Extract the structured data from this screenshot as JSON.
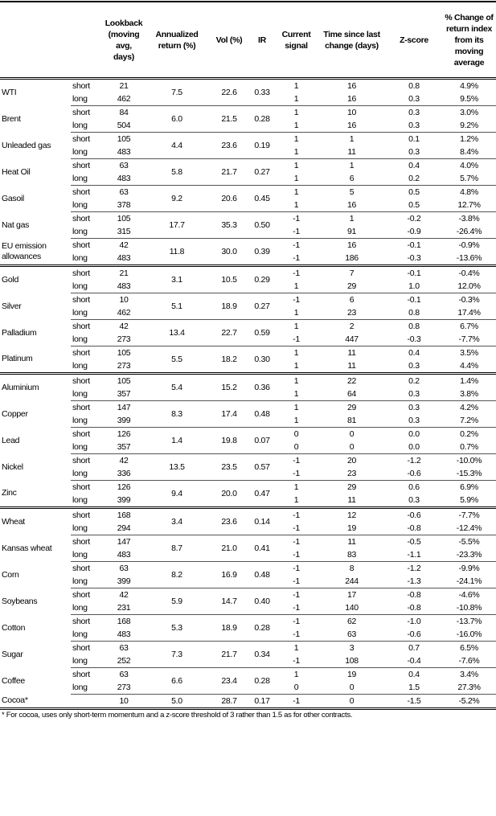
{
  "headers": [
    "",
    "",
    "Lookback (moving avg, days)",
    "Annualized return (%)",
    "Vol (%)",
    "IR",
    "Current signal",
    "Time since last change (days)",
    "Z-score",
    "% Change of return index from its moving average"
  ],
  "groups": [
    [
      {
        "name": "WTI",
        "ann": "7.5",
        "vol": "22.6",
        "ir": "0.33",
        "rows": [
          {
            "term": "short",
            "lookback": "21",
            "signal": "1",
            "time": "16",
            "z": "0.8",
            "pct": "4.9%"
          },
          {
            "term": "long",
            "lookback": "462",
            "signal": "1",
            "time": "16",
            "z": "0.3",
            "pct": "9.5%"
          }
        ]
      },
      {
        "name": "Brent",
        "ann": "6.0",
        "vol": "21.5",
        "ir": "0.28",
        "rows": [
          {
            "term": "short",
            "lookback": "84",
            "signal": "1",
            "time": "10",
            "z": "0.3",
            "pct": "3.0%"
          },
          {
            "term": "long",
            "lookback": "504",
            "signal": "1",
            "time": "16",
            "z": "0.3",
            "pct": "9.2%"
          }
        ]
      },
      {
        "name": "Unleaded gas",
        "ann": "4.4",
        "vol": "23.6",
        "ir": "0.19",
        "rows": [
          {
            "term": "short",
            "lookback": "105",
            "signal": "1",
            "time": "1",
            "z": "0.1",
            "pct": "1.2%"
          },
          {
            "term": "long",
            "lookback": "483",
            "signal": "1",
            "time": "11",
            "z": "0.3",
            "pct": "8.4%"
          }
        ]
      },
      {
        "name": "Heat Oil",
        "ann": "5.8",
        "vol": "21.7",
        "ir": "0.27",
        "rows": [
          {
            "term": "short",
            "lookback": "63",
            "signal": "1",
            "time": "1",
            "z": "0.4",
            "pct": "4.0%"
          },
          {
            "term": "long",
            "lookback": "483",
            "signal": "1",
            "time": "6",
            "z": "0.2",
            "pct": "5.7%"
          }
        ]
      },
      {
        "name": "Gasoil",
        "ann": "9.2",
        "vol": "20.6",
        "ir": "0.45",
        "rows": [
          {
            "term": "short",
            "lookback": "63",
            "signal": "1",
            "time": "5",
            "z": "0.5",
            "pct": "4.8%"
          },
          {
            "term": "long",
            "lookback": "378",
            "signal": "1",
            "time": "16",
            "z": "0.5",
            "pct": "12.7%"
          }
        ]
      },
      {
        "name": "Nat gas",
        "ann": "17.7",
        "vol": "35.3",
        "ir": "0.50",
        "rows": [
          {
            "term": "short",
            "lookback": "105",
            "signal": "-1",
            "time": "1",
            "z": "-0.2",
            "pct": "-3.8%"
          },
          {
            "term": "long",
            "lookback": "315",
            "signal": "-1",
            "time": "91",
            "z": "-0.9",
            "pct": "-26.4%"
          }
        ]
      },
      {
        "name": "EU emission allowances",
        "ann": "11.8",
        "vol": "30.0",
        "ir": "0.39",
        "rows": [
          {
            "term": "short",
            "lookback": "42",
            "signal": "-1",
            "time": "16",
            "z": "-0.1",
            "pct": "-0.9%"
          },
          {
            "term": "long",
            "lookback": "483",
            "signal": "-1",
            "time": "186",
            "z": "-0.3",
            "pct": "-13.6%"
          }
        ]
      }
    ],
    [
      {
        "name": "Gold",
        "ann": "3.1",
        "vol": "10.5",
        "ir": "0.29",
        "rows": [
          {
            "term": "short",
            "lookback": "21",
            "signal": "-1",
            "time": "7",
            "z": "-0.1",
            "pct": "-0.4%"
          },
          {
            "term": "long",
            "lookback": "483",
            "signal": "1",
            "time": "29",
            "z": "1.0",
            "pct": "12.0%"
          }
        ]
      },
      {
        "name": "Silver",
        "ann": "5.1",
        "vol": "18.9",
        "ir": "0.27",
        "rows": [
          {
            "term": "short",
            "lookback": "10",
            "signal": "-1",
            "time": "6",
            "z": "-0.1",
            "pct": "-0.3%"
          },
          {
            "term": "long",
            "lookback": "462",
            "signal": "1",
            "time": "23",
            "z": "0.8",
            "pct": "17.4%"
          }
        ]
      },
      {
        "name": "Palladium",
        "ann": "13.4",
        "vol": "22.7",
        "ir": "0.59",
        "rows": [
          {
            "term": "short",
            "lookback": "42",
            "signal": "1",
            "time": "2",
            "z": "0.8",
            "pct": "6.7%"
          },
          {
            "term": "long",
            "lookback": "273",
            "signal": "-1",
            "time": "447",
            "z": "-0.3",
            "pct": "-7.7%"
          }
        ]
      },
      {
        "name": "Platinum",
        "ann": "5.5",
        "vol": "18.2",
        "ir": "0.30",
        "rows": [
          {
            "term": "short",
            "lookback": "105",
            "signal": "1",
            "time": "11",
            "z": "0.4",
            "pct": "3.5%"
          },
          {
            "term": "long",
            "lookback": "273",
            "signal": "1",
            "time": "11",
            "z": "0.3",
            "pct": "4.4%"
          }
        ]
      }
    ],
    [
      {
        "name": "Aluminium",
        "ann": "5.4",
        "vol": "15.2",
        "ir": "0.36",
        "rows": [
          {
            "term": "short",
            "lookback": "105",
            "signal": "1",
            "time": "22",
            "z": "0.2",
            "pct": "1.4%"
          },
          {
            "term": "long",
            "lookback": "357",
            "signal": "1",
            "time": "64",
            "z": "0.3",
            "pct": "3.8%"
          }
        ]
      },
      {
        "name": "Copper",
        "ann": "8.3",
        "vol": "17.4",
        "ir": "0.48",
        "rows": [
          {
            "term": "short",
            "lookback": "147",
            "signal": "1",
            "time": "29",
            "z": "0.3",
            "pct": "4.2%"
          },
          {
            "term": "long",
            "lookback": "399",
            "signal": "1",
            "time": "81",
            "z": "0.3",
            "pct": "7.2%"
          }
        ]
      },
      {
        "name": "Lead",
        "ann": "1.4",
        "vol": "19.8",
        "ir": "0.07",
        "rows": [
          {
            "term": "short",
            "lookback": "126",
            "signal": "0",
            "time": "0",
            "z": "0.0",
            "pct": "0.2%"
          },
          {
            "term": "long",
            "lookback": "357",
            "signal": "0",
            "time": "0",
            "z": "0.0",
            "pct": "0.7%"
          }
        ]
      },
      {
        "name": "Nickel",
        "ann": "13.5",
        "vol": "23.5",
        "ir": "0.57",
        "rows": [
          {
            "term": "short",
            "lookback": "42",
            "signal": "-1",
            "time": "20",
            "z": "-1.2",
            "pct": "-10.0%"
          },
          {
            "term": "long",
            "lookback": "336",
            "signal": "-1",
            "time": "23",
            "z": "-0.6",
            "pct": "-15.3%"
          }
        ]
      },
      {
        "name": "Zinc",
        "ann": "9.4",
        "vol": "20.0",
        "ir": "0.47",
        "rows": [
          {
            "term": "short",
            "lookback": "126",
            "signal": "1",
            "time": "29",
            "z": "0.6",
            "pct": "6.9%"
          },
          {
            "term": "long",
            "lookback": "399",
            "signal": "1",
            "time": "11",
            "z": "0.3",
            "pct": "5.9%"
          }
        ]
      }
    ],
    [
      {
        "name": "Wheat",
        "ann": "3.4",
        "vol": "23.6",
        "ir": "0.14",
        "rows": [
          {
            "term": "short",
            "lookback": "168",
            "signal": "-1",
            "time": "12",
            "z": "-0.6",
            "pct": "-7.7%"
          },
          {
            "term": "long",
            "lookback": "294",
            "signal": "-1",
            "time": "19",
            "z": "-0.8",
            "pct": "-12.4%"
          }
        ]
      },
      {
        "name": "Kansas wheat",
        "ann": "8.7",
        "vol": "21.0",
        "ir": "0.41",
        "rows": [
          {
            "term": "short",
            "lookback": "147",
            "signal": "-1",
            "time": "11",
            "z": "-0.5",
            "pct": "-5.5%"
          },
          {
            "term": "long",
            "lookback": "483",
            "signal": "-1",
            "time": "83",
            "z": "-1.1",
            "pct": "-23.3%"
          }
        ]
      },
      {
        "name": "Corn",
        "ann": "8.2",
        "vol": "16.9",
        "ir": "0.48",
        "rows": [
          {
            "term": "short",
            "lookback": "63",
            "signal": "-1",
            "time": "8",
            "z": "-1.2",
            "pct": "-9.9%"
          },
          {
            "term": "long",
            "lookback": "399",
            "signal": "-1",
            "time": "244",
            "z": "-1.3",
            "pct": "-24.1%"
          }
        ]
      },
      {
        "name": "Soybeans",
        "ann": "5.9",
        "vol": "14.7",
        "ir": "0.40",
        "rows": [
          {
            "term": "short",
            "lookback": "42",
            "signal": "-1",
            "time": "17",
            "z": "-0.8",
            "pct": "-4.6%"
          },
          {
            "term": "long",
            "lookback": "231",
            "signal": "-1",
            "time": "140",
            "z": "-0.8",
            "pct": "-10.8%"
          }
        ]
      },
      {
        "name": "Cotton",
        "ann": "5.3",
        "vol": "18.9",
        "ir": "0.28",
        "rows": [
          {
            "term": "short",
            "lookback": "168",
            "signal": "-1",
            "time": "62",
            "z": "-1.0",
            "pct": "-13.7%"
          },
          {
            "term": "long",
            "lookback": "483",
            "signal": "-1",
            "time": "63",
            "z": "-0.6",
            "pct": "-16.0%"
          }
        ]
      },
      {
        "name": "Sugar",
        "ann": "7.3",
        "vol": "21.7",
        "ir": "0.34",
        "rows": [
          {
            "term": "short",
            "lookback": "63",
            "signal": "1",
            "time": "3",
            "z": "0.7",
            "pct": "6.5%"
          },
          {
            "term": "long",
            "lookback": "252",
            "signal": "-1",
            "time": "108",
            "z": "-0.4",
            "pct": "-7.6%"
          }
        ]
      },
      {
        "name": "Coffee",
        "ann": "6.6",
        "vol": "23.4",
        "ir": "0.28",
        "rows": [
          {
            "term": "short",
            "lookback": "63",
            "signal": "1",
            "time": "19",
            "z": "0.4",
            "pct": "3.4%"
          },
          {
            "term": "long",
            "lookback": "273",
            "signal": "0",
            "time": "0",
            "z": "1.5",
            "pct": "27.3%"
          }
        ]
      },
      {
        "name": "Cocoa*",
        "ann": "5.0",
        "vol": "28.7",
        "ir": "0.17",
        "rows": [
          {
            "term": "",
            "lookback": "10",
            "signal": "-1",
            "time": "0",
            "z": "-1.5",
            "pct": "-5.2%"
          }
        ]
      }
    ]
  ],
  "footnote": "* For cocoa, uses only short-term momentum and a z-score threshold of 3 rather than 1.5 as for other contracts."
}
